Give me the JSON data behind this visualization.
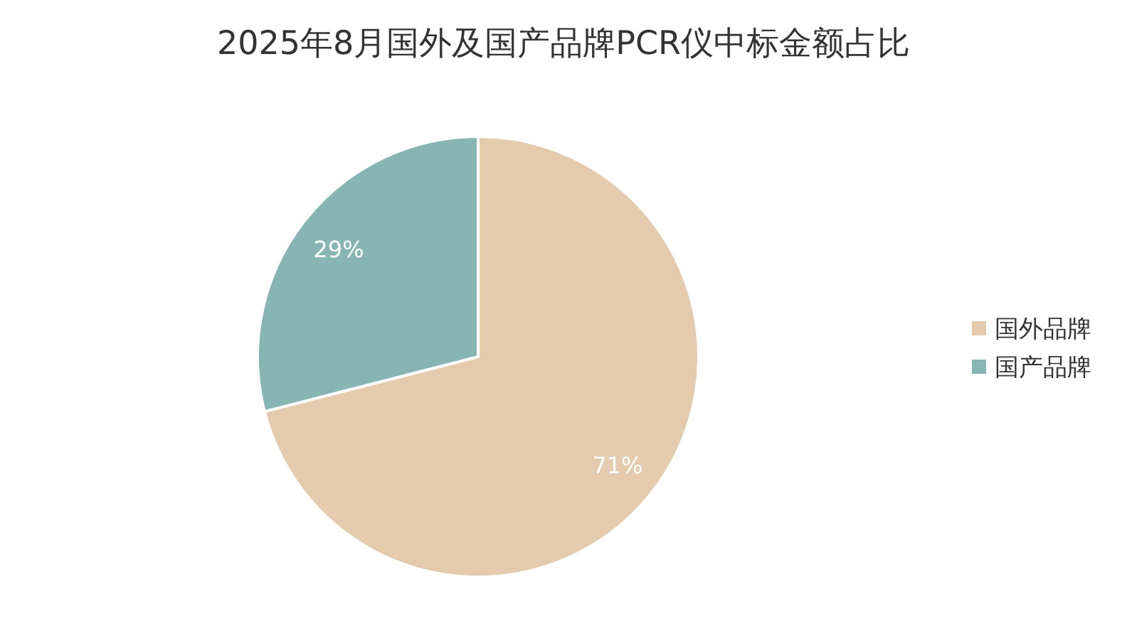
{
  "chart_data": {
    "type": "pie",
    "title": "2025年8月国外及国产品牌PCR仪中标金额占比",
    "categories": [
      "国外品牌",
      "国产品牌"
    ],
    "values": [
      71,
      29
    ],
    "colors": [
      "#e4cbad",
      "#87b5b3"
    ],
    "value_labels": [
      "71%",
      "29%"
    ],
    "legend": "right"
  }
}
